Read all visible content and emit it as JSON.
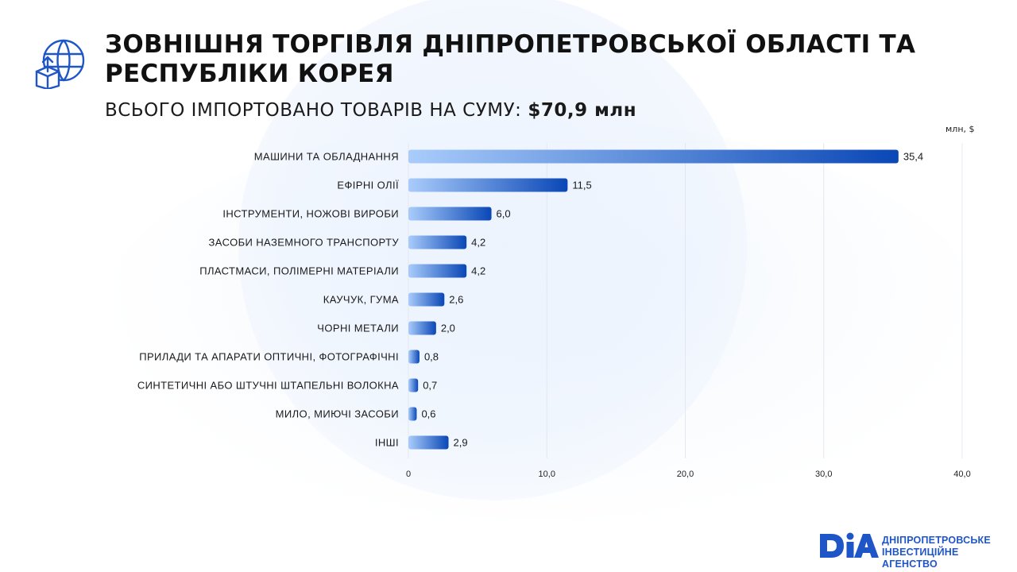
{
  "header": {
    "title": "ЗОВНІШНЯ ТОРГІВЛЯ ДНІПРОПЕТРОВСЬКОЇ ОБЛАСТІ ТА РЕСПУБЛІКИ КОРЕЯ",
    "subtitle_label": "ВСЬОГО ІМПОРТОВАНО ТОВАРІВ НА СУМУ:",
    "subtitle_value": "$70,9 млн",
    "icon": "globe-box-upload-icon"
  },
  "brand": {
    "line1": "ДНІПРОПЕТРОВСЬКЕ",
    "line2": "ІНВЕСТИЦІЙНЕ АГЕНСТВО",
    "accent": "#1f56c7"
  },
  "colors": {
    "bar_start": "#a9ccfb",
    "bar_end": "#0a47b6",
    "grid": "#e3e8f0"
  },
  "chart_data": {
    "type": "bar",
    "orientation": "horizontal",
    "unit_label": "млн, $",
    "categories": [
      "МАШИНИ ТА ОБЛАДНАННЯ",
      "ЕФІРНІ ОЛІЇ",
      "ІНСТРУМЕНТИ, НОЖОВІ ВИРОБИ",
      "ЗАСОБИ НАЗЕМНОГО ТРАНСПОРТУ",
      "ПЛАСТМАСИ, ПОЛІМЕРНІ МАТЕРІАЛИ",
      "КАУЧУК, ГУМА",
      "ЧОРНІ МЕТАЛИ",
      "ПРИЛАДИ ТА АПАРАТИ ОПТИЧНІ, ФОТОГРАФІЧНІ",
      "СИНТЕТИЧНІ АБО ШТУЧНІ ШТАПЕЛЬНІ ВОЛОКНА",
      "МИЛО, МИЮЧІ ЗАСОБИ",
      "ІНШІ"
    ],
    "values": [
      35.4,
      11.5,
      6.0,
      4.2,
      4.2,
      2.6,
      2.0,
      0.8,
      0.7,
      0.6,
      2.9
    ],
    "value_labels": [
      "35,4",
      "11,5",
      "6,0",
      "4,2",
      "4,2",
      "2,6",
      "2,0",
      "0,8",
      "0,7",
      "0,6",
      "2,9"
    ],
    "xlim": [
      0,
      40
    ],
    "xticks": [
      0,
      10,
      20,
      30,
      40
    ],
    "xtick_labels": [
      "0",
      "10,0",
      "20,0",
      "30,0",
      "40,0"
    ],
    "grid": true
  }
}
